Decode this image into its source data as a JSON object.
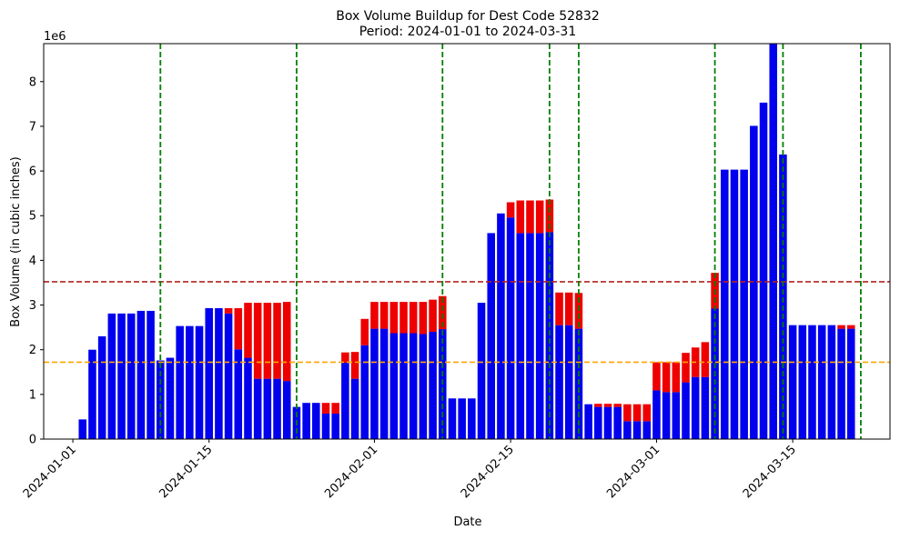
{
  "chart_data": {
    "type": "bar",
    "stacked": true,
    "title": "Box Volume Buildup for Dest Code 52832",
    "subtitle": "Period: 2024-01-01 to 2024-03-31",
    "xlabel": "Date",
    "ylabel": "Box Volume (in cubic inches)",
    "y_multiplier_label": "1e6",
    "xlim": [
      "2023-12-29",
      "2024-03-25"
    ],
    "ylim": [
      0,
      8.85
    ],
    "y_scale_note": "values in millions (1e6)",
    "x_ticks": [
      "2024-01-01",
      "2024-01-15",
      "2024-02-01",
      "2024-02-15",
      "2024-03-01",
      "2024-03-15"
    ],
    "y_ticks": [
      0,
      1,
      2,
      3,
      4,
      5,
      6,
      7,
      8
    ],
    "colors": {
      "base": "#0000ee",
      "top": "#ee0000",
      "threshold_high": "#b22222",
      "threshold_low": "#ffa500",
      "event_lines": "#008000"
    },
    "hlines": [
      {
        "y": 3.52,
        "color": "#b22222",
        "style": "dashed"
      },
      {
        "y": 1.72,
        "color": "#ffa500",
        "style": "dashed"
      }
    ],
    "vlines": [
      "2024-01-10",
      "2024-01-24",
      "2024-02-08",
      "2024-02-19",
      "2024-02-22",
      "2024-03-07",
      "2024-03-14",
      "2024-03-22"
    ],
    "dates": [
      "2024-01-02",
      "2024-01-03",
      "2024-01-04",
      "2024-01-05",
      "2024-01-06",
      "2024-01-07",
      "2024-01-08",
      "2024-01-09",
      "2024-01-10",
      "2024-01-11",
      "2024-01-12",
      "2024-01-13",
      "2024-01-14",
      "2024-01-15",
      "2024-01-16",
      "2024-01-17",
      "2024-01-18",
      "2024-01-19",
      "2024-01-20",
      "2024-01-21",
      "2024-01-22",
      "2024-01-23",
      "2024-01-24",
      "2024-01-25",
      "2024-01-26",
      "2024-01-27",
      "2024-01-28",
      "2024-01-29",
      "2024-01-30",
      "2024-01-31",
      "2024-02-01",
      "2024-02-02",
      "2024-02-03",
      "2024-02-04",
      "2024-02-05",
      "2024-02-06",
      "2024-02-07",
      "2024-02-08",
      "2024-02-09",
      "2024-02-10",
      "2024-02-11",
      "2024-02-12",
      "2024-02-13",
      "2024-02-14",
      "2024-02-15",
      "2024-02-16",
      "2024-02-17",
      "2024-02-18",
      "2024-02-19",
      "2024-02-20",
      "2024-02-21",
      "2024-02-22",
      "2024-02-23",
      "2024-02-24",
      "2024-02-25",
      "2024-02-26",
      "2024-02-27",
      "2024-02-28",
      "2024-02-29",
      "2024-03-01",
      "2024-03-02",
      "2024-03-03",
      "2024-03-04",
      "2024-03-05",
      "2024-03-06",
      "2024-03-07",
      "2024-03-08",
      "2024-03-09",
      "2024-03-10",
      "2024-03-11",
      "2024-03-12",
      "2024-03-13",
      "2024-03-14",
      "2024-03-15",
      "2024-03-16",
      "2024-03-17",
      "2024-03-18",
      "2024-03-19",
      "2024-03-20",
      "2024-03-21"
    ],
    "series": [
      {
        "values": [
          0.44,
          2.0,
          2.3,
          2.81,
          2.81,
          2.81,
          2.87,
          2.87,
          1.76,
          1.82,
          2.53,
          2.53,
          2.53,
          2.93,
          2.93,
          2.81,
          2.01,
          1.82,
          1.35,
          1.35,
          1.35,
          1.3,
          0.72,
          0.81,
          0.81,
          0.57,
          0.57,
          1.71,
          1.35,
          2.1,
          2.47,
          2.47,
          2.37,
          2.37,
          2.37,
          2.35,
          2.4,
          2.46,
          0.91,
          0.91,
          0.91,
          3.05,
          4.61,
          5.05,
          4.96,
          4.61,
          4.61,
          4.61,
          4.63,
          2.55,
          2.55,
          2.47,
          0.78,
          0.72,
          0.72,
          0.72,
          0.4,
          0.4,
          0.4,
          1.09,
          1.05,
          1.05,
          1.27,
          1.39,
          1.39,
          2.92,
          6.03,
          6.03,
          6.03,
          7.01,
          7.53,
          8.85,
          6.37,
          2.55,
          2.55,
          2.55,
          2.55,
          2.55,
          2.47,
          2.47
        ]
      },
      {
        "values": [
          0,
          0,
          0,
          0,
          0,
          0,
          0,
          0,
          0,
          0,
          0,
          0,
          0,
          0,
          0,
          0.12,
          0.92,
          1.23,
          1.7,
          1.7,
          1.7,
          1.77,
          0,
          0,
          0,
          0.24,
          0.24,
          0.23,
          0.6,
          0.59,
          0.6,
          0.6,
          0.7,
          0.7,
          0.7,
          0.72,
          0.72,
          0.74,
          0,
          0,
          0,
          0,
          0,
          0,
          0.34,
          0.73,
          0.73,
          0.73,
          0.73,
          0.73,
          0.73,
          0.8,
          0,
          0.07,
          0.07,
          0.07,
          0.38,
          0.38,
          0.38,
          0.63,
          0.67,
          0.67,
          0.66,
          0.66,
          0.78,
          0.8,
          0,
          0,
          0,
          0,
          0,
          0,
          0,
          0,
          0,
          0,
          0,
          0,
          0.08,
          0.08
        ]
      }
    ]
  }
}
